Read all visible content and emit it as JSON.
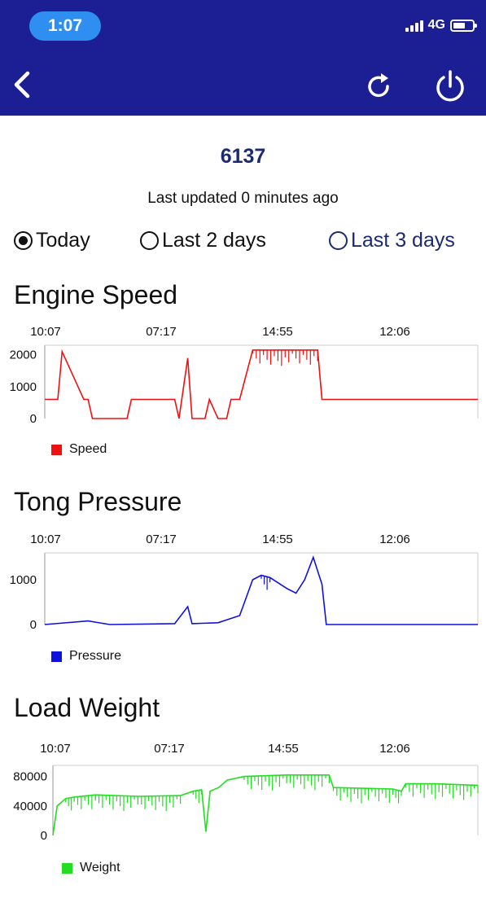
{
  "status_bar": {
    "time": "1:07",
    "network": "4G"
  },
  "header": {
    "back_icon": "chevron-left-icon",
    "refresh_icon": "refresh-icon",
    "power_icon": "power-icon"
  },
  "device": {
    "id": "6137",
    "updated": "Last updated 0 minutes ago"
  },
  "range_options": [
    {
      "label": "Today",
      "selected": true
    },
    {
      "label": "Last 2 days",
      "selected": false
    },
    {
      "label": "Last 3 days",
      "selected": false
    }
  ],
  "colors": {
    "appbar": "#1c1f94",
    "accent": "#1c2a72",
    "speed": "#ee1111",
    "pressure": "#1111dd",
    "weight": "#22dd22"
  },
  "chart_data": [
    {
      "type": "line",
      "title": "Engine Speed",
      "x_tick_labels": [
        "10:07",
        "07:17",
        "14:55",
        "12:06"
      ],
      "y_tick_labels": [
        "2000",
        "1000",
        "0"
      ],
      "ylim": [
        0,
        2300
      ],
      "series": [
        {
          "name": "Speed",
          "color": "#ee1111"
        }
      ],
      "sample_points": [
        [
          0.0,
          600
        ],
        [
          0.03,
          600
        ],
        [
          0.04,
          2100
        ],
        [
          0.09,
          600
        ],
        [
          0.1,
          600
        ],
        [
          0.11,
          0
        ],
        [
          0.19,
          0
        ],
        [
          0.2,
          600
        ],
        [
          0.3,
          600
        ],
        [
          0.31,
          0
        ],
        [
          0.33,
          1900
        ],
        [
          0.34,
          0
        ],
        [
          0.37,
          0
        ],
        [
          0.38,
          600
        ],
        [
          0.4,
          0
        ],
        [
          0.42,
          0
        ],
        [
          0.43,
          600
        ],
        [
          0.45,
          600
        ],
        [
          0.48,
          2150
        ],
        [
          0.63,
          2150
        ],
        [
          0.64,
          600
        ],
        [
          1.0,
          600
        ]
      ]
    },
    {
      "type": "line",
      "title": "Tong Pressure",
      "x_tick_labels": [
        "10:07",
        "07:17",
        "14:55",
        "12:06"
      ],
      "y_tick_labels": [
        "1000",
        "0"
      ],
      "ylim": [
        0,
        1600
      ],
      "series": [
        {
          "name": "Pressure",
          "color": "#1111dd"
        }
      ],
      "sample_points": [
        [
          0.0,
          0
        ],
        [
          0.1,
          80
        ],
        [
          0.15,
          0
        ],
        [
          0.3,
          20
        ],
        [
          0.33,
          400
        ],
        [
          0.34,
          20
        ],
        [
          0.4,
          40
        ],
        [
          0.45,
          200
        ],
        [
          0.48,
          1000
        ],
        [
          0.5,
          1100
        ],
        [
          0.52,
          1050
        ],
        [
          0.56,
          800
        ],
        [
          0.58,
          700
        ],
        [
          0.6,
          1000
        ],
        [
          0.62,
          1500
        ],
        [
          0.64,
          900
        ],
        [
          0.65,
          0
        ],
        [
          1.0,
          0
        ]
      ]
    },
    {
      "type": "line",
      "title": "Load Weight",
      "x_tick_labels": [
        "10:07",
        "07:17",
        "14:55",
        "12:06"
      ],
      "y_tick_labels": [
        "80000",
        "40000",
        "0"
      ],
      "ylim": [
        0,
        95000
      ],
      "series": [
        {
          "name": "Weight",
          "color": "#22dd22"
        }
      ],
      "sample_points": [
        [
          0.0,
          0
        ],
        [
          0.01,
          40000
        ],
        [
          0.03,
          50000
        ],
        [
          0.05,
          52000
        ],
        [
          0.1,
          55000
        ],
        [
          0.2,
          53000
        ],
        [
          0.3,
          54000
        ],
        [
          0.33,
          60000
        ],
        [
          0.35,
          62000
        ],
        [
          0.36,
          5000
        ],
        [
          0.37,
          60000
        ],
        [
          0.39,
          65000
        ],
        [
          0.41,
          75000
        ],
        [
          0.45,
          80000
        ],
        [
          0.55,
          82000
        ],
        [
          0.65,
          82000
        ],
        [
          0.66,
          65000
        ],
        [
          0.8,
          63000
        ],
        [
          0.82,
          60000
        ],
        [
          0.83,
          70000
        ],
        [
          0.9,
          70000
        ],
        [
          1.0,
          68000
        ]
      ]
    }
  ]
}
